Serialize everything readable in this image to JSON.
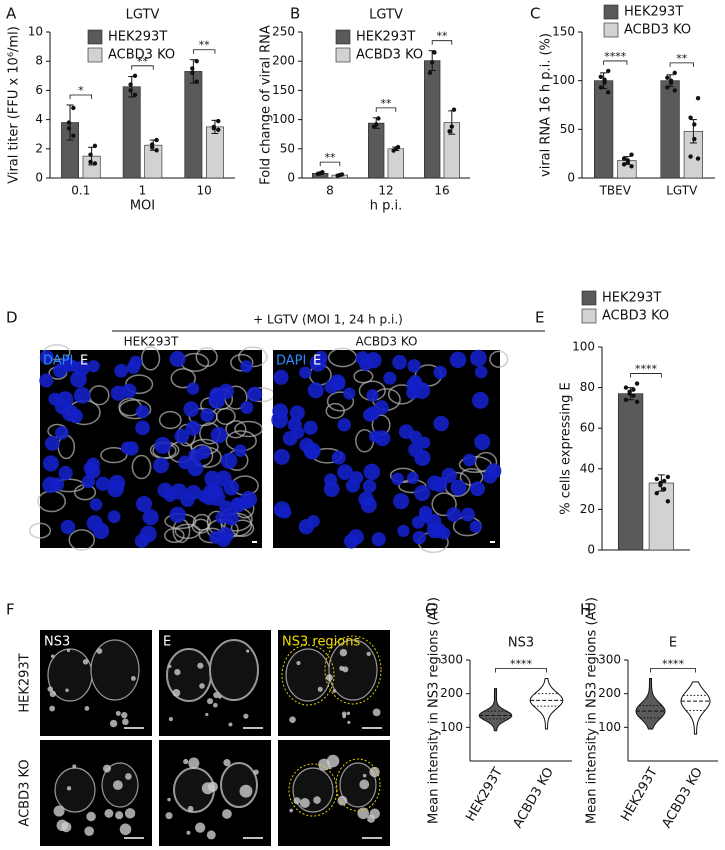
{
  "panel_labels": [
    "A",
    "B",
    "C",
    "D",
    "E",
    "F",
    "G",
    "H"
  ],
  "chart_data": [
    {
      "type": "bar",
      "title": "LGTV",
      "y_label": "Viral titer (FFU x 10⁶/ml)",
      "x_label": "MOI",
      "categories": [
        "0.1",
        "1",
        "10"
      ],
      "series": [
        {
          "name": "HEK293T",
          "color": "#5a5a5a",
          "values": [
            3.8,
            6.25,
            7.3
          ],
          "errors": [
            1.2,
            0.7,
            0.8
          ],
          "points": [
            [
              4.8,
              3.8,
              3.4,
              2.9
            ],
            [
              7.0,
              6.4,
              6.0,
              5.7
            ],
            [
              8.0,
              7.5,
              7.2,
              6.6
            ]
          ]
        },
        {
          "name": "ACBD3 KO",
          "color": "#d2d2d2",
          "values": [
            1.5,
            2.25,
            3.5
          ],
          "errors": [
            0.6,
            0.35,
            0.45
          ],
          "points": [
            [
              2.2,
              1.6,
              1.1,
              1.0
            ],
            [
              2.6,
              2.3,
              2.1,
              1.9
            ],
            [
              3.9,
              3.5,
              3.4,
              3.3
            ]
          ]
        }
      ],
      "significance": [
        "*",
        "**",
        "**"
      ],
      "ylim": [
        0,
        10
      ],
      "yticks": [
        0,
        2,
        4,
        6,
        8,
        10
      ]
    },
    {
      "type": "bar",
      "title": "LGTV",
      "y_label": "Fold change of viral RNA",
      "x_label": "h p.i.",
      "categories": [
        "8",
        "12",
        "16"
      ],
      "series": [
        {
          "name": "HEK293T",
          "color": "#5a5a5a",
          "values": [
            8,
            94,
            201
          ],
          "errors": [
            2,
            9,
            17
          ],
          "points": [
            [
              10,
              8,
              7
            ],
            [
              102,
              92,
              88
            ],
            [
              215,
              198,
              180
            ]
          ]
        },
        {
          "name": "ACBD3 KO",
          "color": "#d2d2d2",
          "values": [
            5,
            50,
            95
          ],
          "errors": [
            1,
            3,
            20
          ],
          "points": [
            [
              6,
              5,
              4
            ],
            [
              53,
              50,
              47
            ],
            [
              117,
              88,
              80
            ]
          ]
        }
      ],
      "significance": [
        "**",
        "**",
        "**"
      ],
      "ylim": [
        0,
        250
      ],
      "yticks": [
        0,
        50,
        100,
        150,
        200,
        250
      ]
    },
    {
      "type": "bar",
      "y_label": "viral RNA 16 h p.i. (%)",
      "categories": [
        "TBEV",
        "LGTV"
      ],
      "series": [
        {
          "name": "HEK293T",
          "color": "#5a5a5a",
          "values": [
            100,
            100
          ],
          "errors": [
            8,
            6
          ],
          "points": [
            [
              110,
              104,
              101,
              98,
              93,
              88
            ],
            [
              108,
              103,
              100,
              98,
              93,
              90
            ]
          ]
        },
        {
          "name": "ACBD3 KO",
          "color": "#d2d2d2",
          "values": [
            18,
            48
          ],
          "errors": [
            4,
            12
          ],
          "points": [
            [
              24,
              20,
              18,
              16,
              14,
              12
            ],
            [
              82,
              62,
              55,
              40,
              22,
              20
            ]
          ]
        }
      ],
      "significance": [
        "****",
        "**"
      ],
      "ylim": [
        0,
        150
      ],
      "yticks": [
        0,
        50,
        100,
        150
      ]
    },
    {
      "type": "bar",
      "y_label": "% cells expressing E",
      "categories": [
        null
      ],
      "series": [
        {
          "name": "HEK293T",
          "color": "#5a5a5a",
          "values": [
            77
          ],
          "errors": [
            3
          ],
          "points": [
            [
              82,
              80,
              79,
              78,
              77,
              76,
              74,
              73
            ]
          ]
        },
        {
          "name": "ACBD3 KO",
          "color": "#d2d2d2",
          "values": [
            33
          ],
          "errors": [
            4
          ],
          "points": [
            [
              36,
              35,
              34,
              33,
              32,
              30,
              28,
              24
            ]
          ]
        }
      ],
      "significance": [
        "****"
      ],
      "ylim": [
        0,
        100
      ],
      "yticks": [
        0,
        20,
        40,
        60,
        80,
        100
      ]
    },
    {
      "type": "violin",
      "title": "NS3",
      "y_label": "Mean intensity in NS3 regions (AU)",
      "categories": [
        "HEK293T",
        "ACBD3 KO"
      ],
      "colors": [
        "#5a5a5a",
        "#ffffff"
      ],
      "stats": [
        {
          "min": 90,
          "q1": 125,
          "median": 135,
          "q3": 148,
          "max": 215
        },
        {
          "min": 95,
          "q1": 163,
          "median": 180,
          "q3": 200,
          "max": 245
        }
      ],
      "significance": "****",
      "ylim": [
        0,
        300
      ],
      "yticks": [
        100,
        200,
        300
      ]
    },
    {
      "type": "violin",
      "title": "E",
      "y_label": "Mean intensity in NS3 regions (AU)",
      "categories": [
        "HEK293T",
        "ACBD3 KO"
      ],
      "colors": [
        "#5a5a5a",
        "#ffffff"
      ],
      "stats": [
        {
          "min": 95,
          "q1": 128,
          "median": 148,
          "q3": 165,
          "max": 245
        },
        {
          "min": 80,
          "q1": 150,
          "median": 178,
          "q3": 195,
          "max": 235
        }
      ],
      "significance": "****",
      "ylim": [
        0,
        300
      ],
      "yticks": [
        100,
        200,
        300
      ]
    }
  ],
  "microscopy": {
    "D": {
      "header": "+ LGTV (MOI 1, 24 h p.i.)",
      "columns": [
        "HEK293T",
        "ACBD3 KO"
      ],
      "channels": [
        "DAPI",
        "E"
      ]
    },
    "F": {
      "columns": [
        "NS3",
        "E",
        "NS3 regions"
      ],
      "rows": [
        "HEK293T",
        "ACBD3 KO"
      ]
    }
  }
}
